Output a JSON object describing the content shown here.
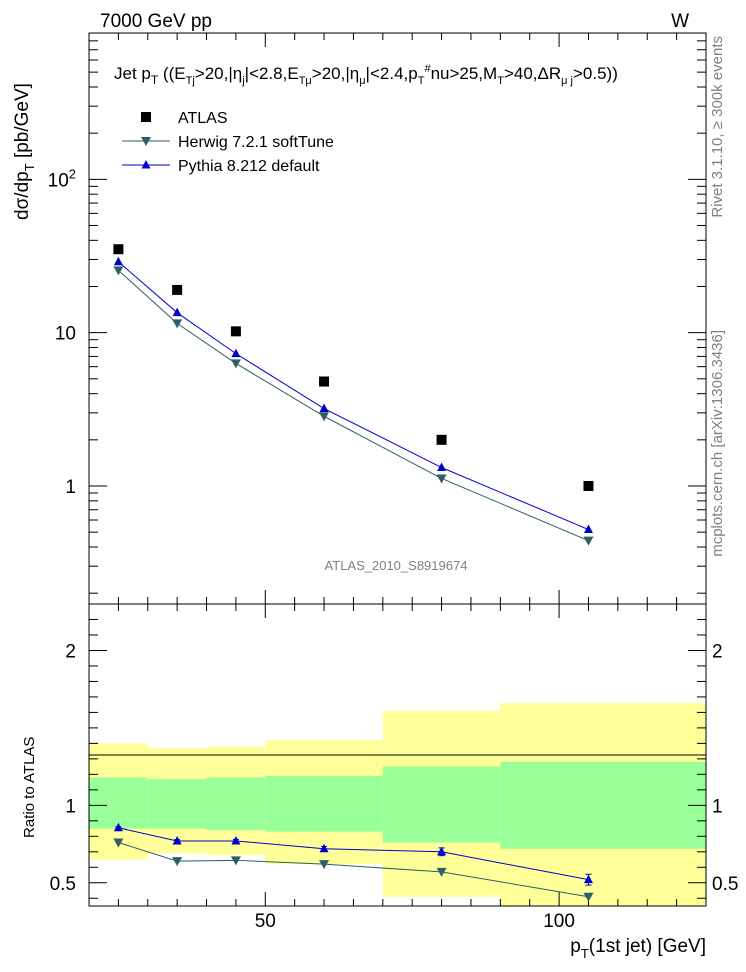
{
  "header": {
    "energy": "7000 GeV pp",
    "process": "W"
  },
  "side": {
    "rivet": "Rivet 3.1.10, ≥ 300k events",
    "mcplots": "mcplots.cern.ch [arXiv:1306.3436]"
  },
  "watermark": "ATLAS_2010_S8919674",
  "chart_data": [
    {
      "type": "scatter",
      "title": "Jet p_T ((E_Tj>20,|η_j|<2.8,E_Tμ>20,|η_μ|<2.4,p_T^#nu>25,M_T>40,ΔR_μj>0.5))",
      "ylabel": "dσ/dp_T [pb/GeV]",
      "yscale": "log",
      "ylim": [
        0.17,
        900
      ],
      "yticklabels": [
        "1",
        "10",
        "10^2"
      ],
      "x": [
        25,
        35,
        45,
        60,
        80,
        105
      ],
      "series": [
        {
          "name": "ATLAS",
          "marker": "square",
          "color": "#000000",
          "values": [
            35,
            19,
            10.2,
            4.8,
            2.0,
            1.0
          ]
        },
        {
          "name": "Herwig 7.2.1 softTune",
          "marker": "triangle-down",
          "color": "#2e5e66",
          "values": [
            25.5,
            11.5,
            6.3,
            2.85,
            1.12,
            0.44
          ]
        },
        {
          "name": "Pythia 8.212 default",
          "marker": "triangle-up",
          "color": "#0000cc",
          "values": [
            29,
            13.5,
            7.3,
            3.2,
            1.32,
            0.52
          ]
        }
      ],
      "legend": "top-left"
    },
    {
      "type": "line",
      "xlabel": "p_T(1st jet) [GeV]",
      "ylabel": "Ratio to ATLAS",
      "xlim": [
        20,
        125
      ],
      "ylim": [
        0.35,
        2.3
      ],
      "xticklabels": [
        "50",
        "100"
      ],
      "yticklabels": [
        "0.5",
        "1",
        "2"
      ],
      "bands": {
        "bins": [
          [
            20,
            30
          ],
          [
            30,
            40
          ],
          [
            40,
            50
          ],
          [
            50,
            70
          ],
          [
            70,
            90
          ],
          [
            90,
            125
          ]
        ],
        "inner": [
          [
            0.85,
            1.18
          ],
          [
            0.85,
            1.17
          ],
          [
            0.84,
            1.18
          ],
          [
            0.83,
            1.19
          ],
          [
            0.76,
            1.25
          ],
          [
            0.72,
            1.28
          ]
        ],
        "outer": [
          [
            0.65,
            1.4
          ],
          [
            0.69,
            1.37
          ],
          [
            0.68,
            1.38
          ],
          [
            0.62,
            1.42
          ],
          [
            0.41,
            1.61
          ],
          [
            0.35,
            1.66
          ]
        ],
        "inner_color": "#99ff99",
        "outer_color": "#ffff99"
      },
      "series": [
        {
          "name": "Herwig 7.2.1 softTune",
          "color": "#2e5e66",
          "marker": "triangle-down",
          "x": [
            25,
            35,
            45,
            60,
            80,
            105
          ],
          "values": [
            0.76,
            0.64,
            0.645,
            0.62,
            0.57,
            0.41
          ],
          "errors": [
            0,
            0,
            0,
            0,
            0,
            0
          ]
        },
        {
          "name": "Pythia 8.212 default",
          "color": "#0000cc",
          "marker": "triangle-up",
          "x": [
            25,
            35,
            45,
            60,
            80,
            105
          ],
          "values": [
            0.855,
            0.77,
            0.77,
            0.72,
            0.7,
            0.52
          ],
          "errors": [
            0.006,
            0.008,
            0.01,
            0.015,
            0.025,
            0.035
          ]
        }
      ],
      "reference_line": 1
    }
  ]
}
